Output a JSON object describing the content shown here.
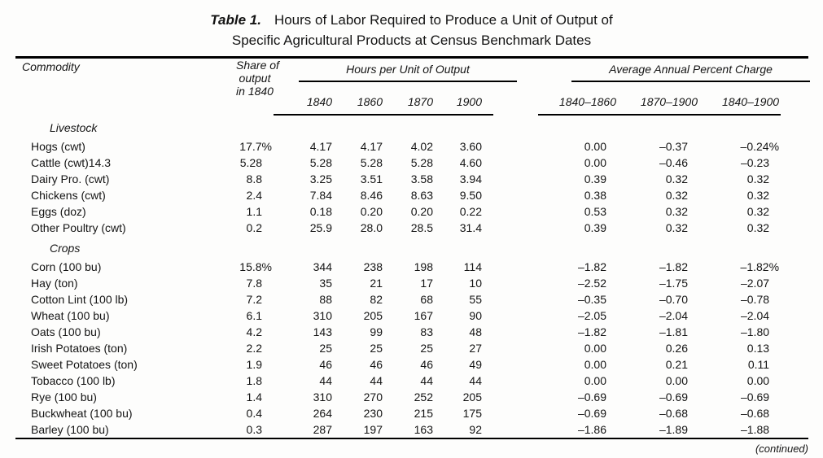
{
  "title": {
    "label": "Table 1.",
    "line1": "Hours of Labor Required to Produce a Unit of Output of",
    "line2": "Specific Agricultural Products at Census Benchmark Dates"
  },
  "table": {
    "header": {
      "commodity": "Commodity",
      "share_lines": [
        "Share of",
        "output",
        "in 1840"
      ],
      "hours_group": "Hours per Unit of Output",
      "hours_cols": [
        "1840",
        "1860",
        "1870",
        "1900"
      ],
      "change_group": "Average Annual Percent Charge",
      "change_cols": [
        "1840–1860",
        "1870–1900",
        "1840–1900"
      ]
    },
    "sections": [
      {
        "label": "Livestock",
        "rows": [
          {
            "commodity": "Hogs (cwt)",
            "share": "17.7%",
            "hours": [
              "4.17",
              "4.17",
              "4.02",
              "3.60"
            ],
            "change": [
              "0.00",
              "–0.37",
              "–0.24%"
            ]
          },
          {
            "commodity": "Cattle (cwt)14.3",
            "share": "5.28",
            "hours": [
              "5.28",
              "5.28",
              "5.28",
              "4.60"
            ],
            "change": [
              "0.00",
              "–0.46",
              "–0.23"
            ]
          },
          {
            "commodity": "Dairy Pro. (cwt)",
            "share": "8.8",
            "hours": [
              "3.25",
              "3.51",
              "3.58",
              "3.94"
            ],
            "change": [
              "0.39",
              "0.32",
              "0.32"
            ]
          },
          {
            "commodity": "Chickens (cwt)",
            "share": "2.4",
            "hours": [
              "7.84",
              "8.46",
              "8.63",
              "9.50"
            ],
            "change": [
              "0.38",
              "0.32",
              "0.32"
            ]
          },
          {
            "commodity": "Eggs (doz)",
            "share": "1.1",
            "hours": [
              "0.18",
              "0.20",
              "0.20",
              "0.22"
            ],
            "change": [
              "0.53",
              "0.32",
              "0.32"
            ]
          },
          {
            "commodity": "Other Poultry (cwt)",
            "share": "0.2",
            "hours": [
              "25.9",
              "28.0",
              "28.5",
              "31.4"
            ],
            "change": [
              "0.39",
              "0.32",
              "0.32"
            ]
          }
        ]
      },
      {
        "label": "Crops",
        "rows": [
          {
            "commodity": "Corn (100 bu)",
            "share": "15.8%",
            "hours": [
              "344",
              "238",
              "198",
              "114"
            ],
            "change": [
              "–1.82",
              "–1.82",
              "–1.82%"
            ]
          },
          {
            "commodity": "Hay (ton)",
            "share": "7.8",
            "hours": [
              "35",
              "21",
              "17",
              "10"
            ],
            "change": [
              "–2.52",
              "–1.75",
              "–2.07"
            ]
          },
          {
            "commodity": "Cotton Lint (100 lb)",
            "share": "7.2",
            "hours": [
              "88",
              "82",
              "68",
              "55"
            ],
            "change": [
              "–0.35",
              "–0.70",
              "–0.78"
            ]
          },
          {
            "commodity": "Wheat (100 bu)",
            "share": "6.1",
            "hours": [
              "310",
              "205",
              "167",
              "90"
            ],
            "change": [
              "–2.05",
              "–2.04",
              "–2.04"
            ]
          },
          {
            "commodity": "Oats (100 bu)",
            "share": "4.2",
            "hours": [
              "143",
              "99",
              "83",
              "48"
            ],
            "change": [
              "–1.82",
              "–1.81",
              "–1.80"
            ]
          },
          {
            "commodity": "Irish Potatoes (ton)",
            "share": "2.2",
            "hours": [
              "25",
              "25",
              "25",
              "27"
            ],
            "change": [
              "0.00",
              "0.26",
              "0.13"
            ]
          },
          {
            "commodity": "Sweet Potatoes (ton)",
            "share": "1.9",
            "hours": [
              "46",
              "46",
              "46",
              "49"
            ],
            "change": [
              "0.00",
              "0.21",
              "0.11"
            ]
          },
          {
            "commodity": "Tobacco (100 lb)",
            "share": "1.8",
            "hours": [
              "44",
              "44",
              "44",
              "44"
            ],
            "change": [
              "0.00",
              "0.00",
              "0.00"
            ]
          },
          {
            "commodity": "Rye (100 bu)",
            "share": "1.4",
            "hours": [
              "310",
              "270",
              "252",
              "205"
            ],
            "change": [
              "–0.69",
              "–0.69",
              "–0.69"
            ]
          },
          {
            "commodity": "Buckwheat (100 bu)",
            "share": "0.4",
            "hours": [
              "264",
              "230",
              "215",
              "175"
            ],
            "change": [
              "–0.69",
              "–0.68",
              "–0.68"
            ]
          },
          {
            "commodity": "Barley (100 bu)",
            "share": "0.3",
            "hours": [
              "287",
              "197",
              "163",
              "92"
            ],
            "change": [
              "–1.86",
              "–1.89",
              "–1.88"
            ]
          }
        ]
      }
    ],
    "footer": {
      "continued": "(continued)"
    }
  }
}
